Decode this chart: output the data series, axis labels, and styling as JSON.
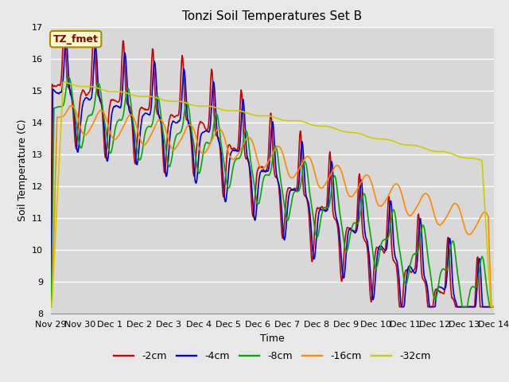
{
  "title": "Tonzi Soil Temperatures Set B",
  "xlabel": "Time",
  "ylabel": "Soil Temperature (C)",
  "ylim": [
    8.0,
    17.0
  ],
  "yticks": [
    8.0,
    9.0,
    10.0,
    11.0,
    12.0,
    13.0,
    14.0,
    15.0,
    16.0,
    17.0
  ],
  "xtick_labels": [
    "Nov 29",
    "Nov 30",
    "Dec 1",
    "Dec 2",
    "Dec 3",
    "Dec 4",
    "Dec 5",
    "Dec 6",
    "Dec 7",
    "Dec 8",
    "Dec 9",
    "Dec 10",
    "Dec 11",
    "Dec 12",
    "Dec 13",
    "Dec 14"
  ],
  "annotation_label": "TZ_fmet",
  "colors": {
    "-2cm": "#cc0000",
    "-4cm": "#0000cc",
    "-8cm": "#00aa00",
    "-16cm": "#ff8800",
    "-32cm": "#cccc00"
  },
  "line_width": 1.2,
  "background_color": "#e8e8e8",
  "plot_bg_color": "#d8d8d8",
  "grid_color": "#ffffff"
}
